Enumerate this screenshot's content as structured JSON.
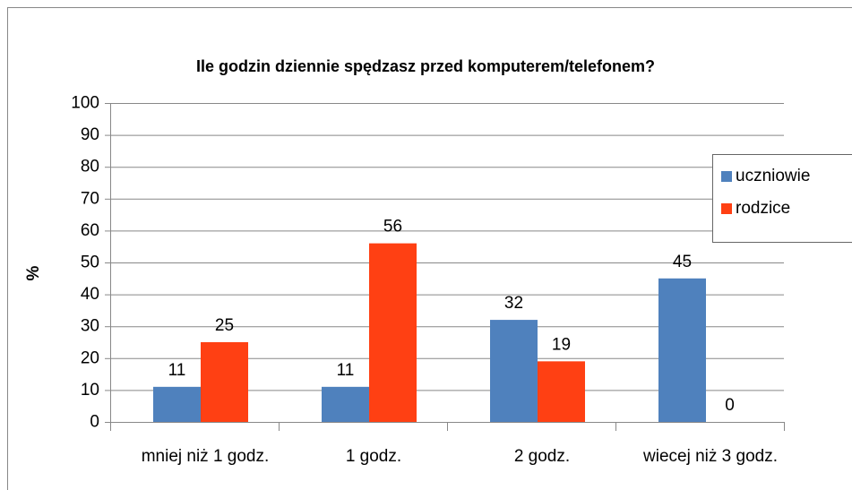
{
  "chart_data": {
    "type": "bar",
    "title": "Ile godzin dziennie spędzasz przed komputerem/telefonem?",
    "y_label": "%",
    "categories": [
      "mniej niż 1 godz.",
      "1 godz.",
      "2 godz.",
      "wiecej niż 3 godz."
    ],
    "series": [
      {
        "name": "uczniowie",
        "color": "#4f81bd",
        "values": [
          11,
          11,
          32,
          45
        ]
      },
      {
        "name": "rodzice",
        "color": "#ff4013",
        "values": [
          25,
          56,
          19,
          0
        ]
      }
    ],
    "ylim": [
      0,
      100
    ],
    "yticks": [
      0,
      10,
      20,
      30,
      40,
      50,
      60,
      70,
      80,
      90,
      100
    ],
    "grid": true,
    "legend": "right"
  }
}
